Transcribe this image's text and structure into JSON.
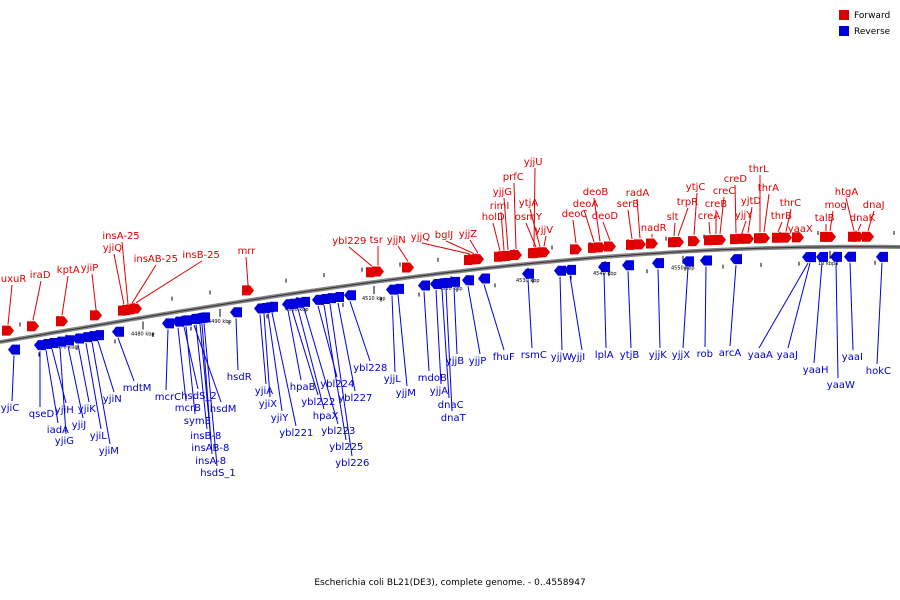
{
  "legend": {
    "forward_label": "Forward",
    "reverse_label": "Reverse",
    "forward_color": "#e00000",
    "reverse_color": "#0000dd"
  },
  "caption": "Escherichia coli BL21(DE3), complete genome. - 0..4558947",
  "ticks": [
    "4470 kbp",
    "4480 kbp",
    "4490 kbp",
    "4500 kbp",
    "4510 kbp",
    "4520 kbp",
    "4530 kbp",
    "4540 kbp",
    "4550 kbp",
    "10 kbp"
  ],
  "forward_genes": [
    "uxuR",
    "iraD",
    "kptA",
    "yjiP",
    "yjiQ",
    "insA-25",
    "insAB-25",
    "insB-25",
    "mrr",
    "ybl229",
    "tsr",
    "yjjN",
    "yjjQ",
    "bglJ",
    "yjjZ",
    "holD",
    "rimI",
    "yjjG",
    "prfC",
    "yjjU",
    "osmY",
    "ytjA",
    "yjjV",
    "deoC",
    "deoA",
    "deoB",
    "deoD",
    "serB",
    "radA",
    "nadR",
    "slt",
    "trpR",
    "ytjC",
    "creA",
    "creB",
    "creC",
    "creD",
    "yjjY",
    "yjtD",
    "thrL",
    "thrA",
    "thrB",
    "thrC",
    "yaaX",
    "talB",
    "mog",
    "htgA",
    "dnaK",
    "dnaJ"
  ],
  "reverse_genes": [
    "yjiC",
    "qseD",
    "iadA",
    "yjiH",
    "yjiG",
    "yjiJ",
    "yjiK",
    "yjiL",
    "yjiM",
    "yjiN",
    "mdtM",
    "mcrC",
    "mcrB",
    "hsdS_2",
    "symE",
    "hsdM",
    "insB-8",
    "insAB-8",
    "insA-8",
    "hsdS_1",
    "hsdR",
    "yjiA",
    "yjiX",
    "yjiY",
    "ybl221",
    "hpaB",
    "ybl222",
    "hpaX",
    "ybl223",
    "ybl224",
    "ybl225",
    "ybl226",
    "ybl227",
    "ybl228",
    "yjjL",
    "yjjM",
    "mdoB",
    "yjjA",
    "dnaC",
    "dnaT",
    "yjjB",
    "yjjP",
    "fhuF",
    "rsmC",
    "yjjW",
    "yjjI",
    "lplA",
    "ytjB",
    "yjjK",
    "yjjX",
    "rob",
    "arcA",
    "yaaA",
    "yaaJ",
    "yaaH",
    "yaaW",
    "yaaI",
    "hokC"
  ]
}
